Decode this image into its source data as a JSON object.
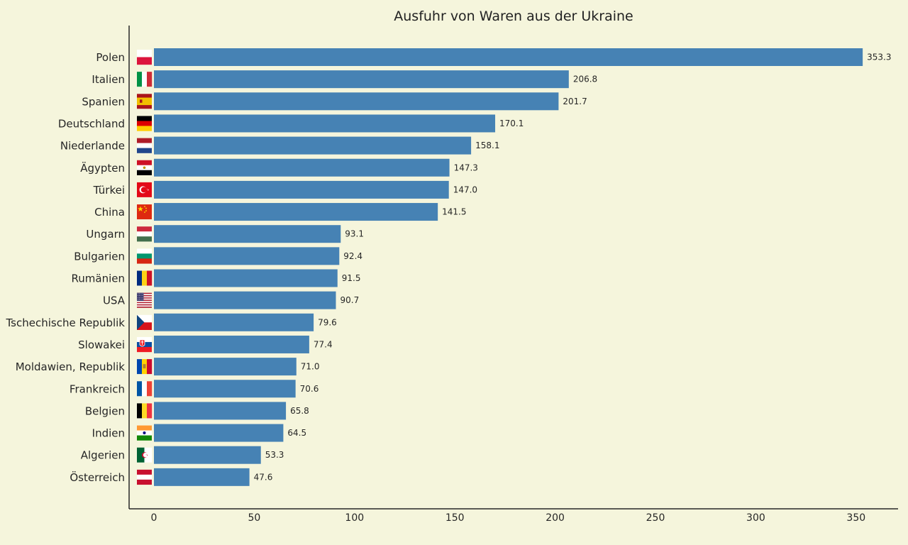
{
  "chart_data": {
    "type": "bar",
    "orientation": "horizontal",
    "title": "Ausfuhr von Waren aus der Ukraine",
    "xlabel": "",
    "ylabel": "",
    "xlim": [
      -12,
      372
    ],
    "xticks": [
      0,
      50,
      100,
      150,
      200,
      250,
      300,
      350
    ],
    "grid": false,
    "bar_color": "#4682b4",
    "background": "#f5f5dc",
    "categories": [
      "Polen",
      "Italien",
      "Spanien",
      "Deutschland",
      "Niederlande",
      "Ägypten",
      "Türkei",
      "China",
      "Ungarn",
      "Bulgarien",
      "Rumänien",
      "USA",
      "Tschechische Republik",
      "Slowakei",
      "Moldawien, Republik",
      "Frankreich",
      "Belgien",
      "Indien",
      "Algerien",
      "Österreich"
    ],
    "value_labels": [
      "353.3",
      "206.8",
      "201.7",
      "170.1",
      "158.1",
      "147.3",
      "147.0",
      "141.5",
      "93.1",
      "92.4",
      "91.5",
      "90.7",
      "79.6",
      "77.4",
      "71.0",
      "70.6",
      "65.8",
      "64.5",
      "53.3",
      "47.6"
    ],
    "values": [
      353.3,
      206.8,
      201.7,
      170.1,
      158.1,
      147.3,
      147.0,
      141.5,
      93.1,
      92.4,
      91.5,
      90.7,
      79.6,
      77.4,
      71.0,
      70.6,
      65.8,
      64.5,
      53.3,
      47.6
    ],
    "flags": [
      "flag-poland-icon",
      "flag-italy-icon",
      "flag-spain-icon",
      "flag-germany-icon",
      "flag-netherlands-icon",
      "flag-egypt-icon",
      "flag-turkey-icon",
      "flag-china-icon",
      "flag-hungary-icon",
      "flag-bulgaria-icon",
      "flag-romania-icon",
      "flag-usa-icon",
      "flag-czechia-icon",
      "flag-slovakia-icon",
      "flag-moldova-icon",
      "flag-france-icon",
      "flag-belgium-icon",
      "flag-india-icon",
      "flag-algeria-icon",
      "flag-austria-icon"
    ]
  }
}
